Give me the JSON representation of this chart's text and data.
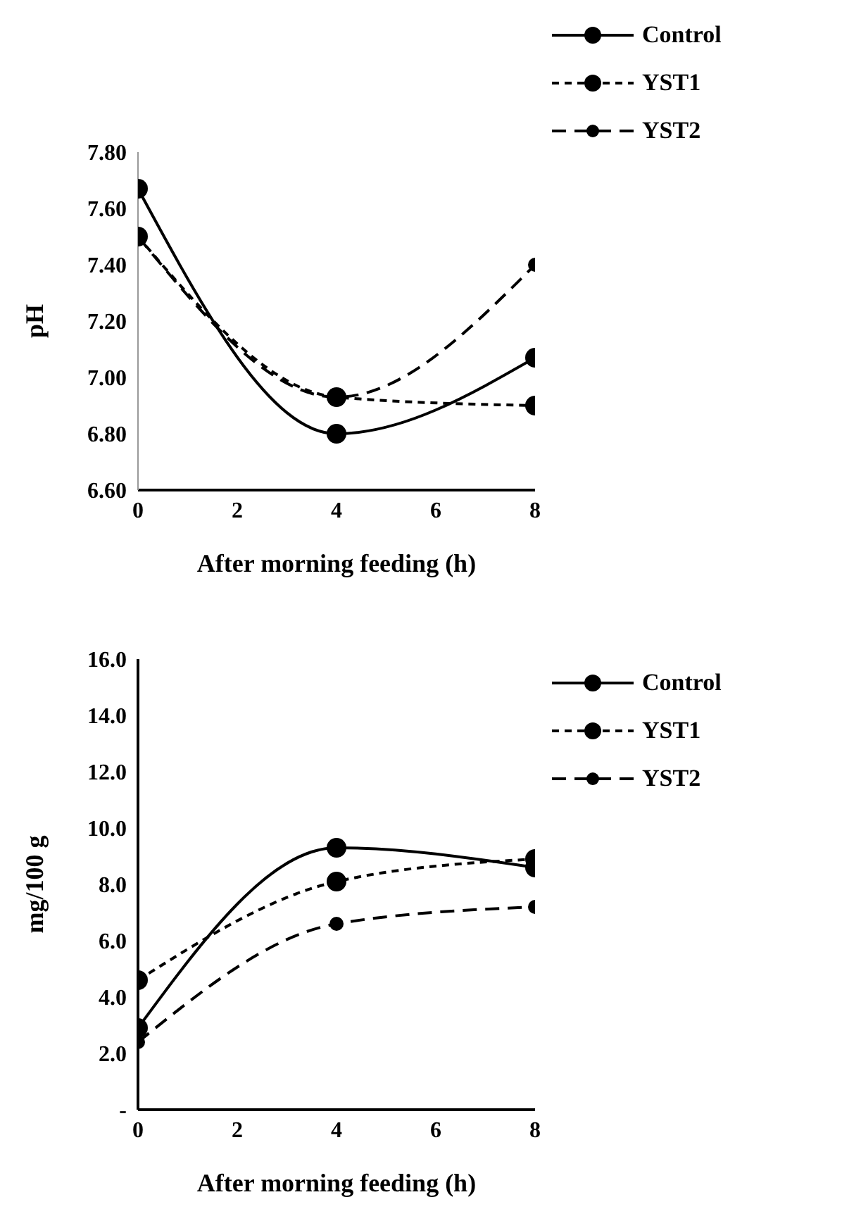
{
  "chart_data": [
    {
      "type": "line",
      "xlabel": "After morning feeding (h)",
      "ylabel": "pH",
      "x": [
        0,
        4,
        8
      ],
      "series": [
        {
          "name": "Control",
          "color": "#000000",
          "values": [
            7.67,
            6.8,
            7.07
          ],
          "line_style": "solid"
        },
        {
          "name": "YST1",
          "color": "#000000",
          "values": [
            7.5,
            6.93,
            6.9
          ],
          "line_style": "dotted"
        },
        {
          "name": "YST2",
          "color": "#000000",
          "values": [
            7.5,
            6.93,
            7.4
          ],
          "line_style": "dashed"
        }
      ],
      "xlim": [
        0,
        8
      ],
      "xticks": [
        0,
        2,
        4,
        6,
        8
      ],
      "ylim": [
        6.6,
        7.8
      ],
      "yticks": [
        {
          "value": 6.6,
          "label": "6.60"
        },
        {
          "value": 6.8,
          "label": "6.80"
        },
        {
          "value": 7.0,
          "label": "7.00"
        },
        {
          "value": 7.2,
          "label": "7.20"
        },
        {
          "value": 7.4,
          "label": "7.40"
        },
        {
          "value": 7.6,
          "label": "7.60"
        },
        {
          "value": 7.8,
          "label": "7.80"
        }
      ],
      "grid": false,
      "legend": "top right",
      "marker": "circle"
    },
    {
      "type": "line",
      "xlabel": "After morning feeding (h)",
      "ylabel": "mg/100 g",
      "x": [
        0,
        4,
        8
      ],
      "series": [
        {
          "name": "Control",
          "color": "#000000",
          "values": [
            2.9,
            9.3,
            8.6
          ],
          "line_style": "solid"
        },
        {
          "name": "YST1",
          "color": "#000000",
          "values": [
            4.6,
            8.1,
            8.9
          ],
          "line_style": "dotted"
        },
        {
          "name": "YST2",
          "color": "#000000",
          "values": [
            2.4,
            6.6,
            7.2
          ],
          "line_style": "dashed"
        }
      ],
      "xlim": [
        0,
        8
      ],
      "xticks": [
        0,
        2,
        4,
        6,
        8
      ],
      "ylim": [
        0,
        16
      ],
      "yticks": [
        {
          "value": 0,
          "label": "-"
        },
        {
          "value": 2,
          "label": "2.0"
        },
        {
          "value": 4,
          "label": "4.0"
        },
        {
          "value": 6,
          "label": "6.0"
        },
        {
          "value": 8,
          "label": "8.0"
        },
        {
          "value": 10,
          "label": "10.0"
        },
        {
          "value": 12,
          "label": "12.0"
        },
        {
          "value": 14,
          "label": "14.0"
        },
        {
          "value": 16,
          "label": "16.0"
        }
      ],
      "grid": false,
      "legend": "top right",
      "marker": "circle"
    }
  ]
}
